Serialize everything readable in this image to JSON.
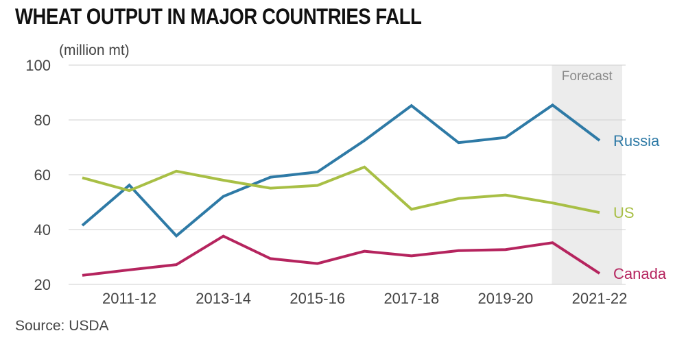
{
  "chart_data": {
    "type": "line",
    "title": "WHEAT OUTPUT IN MAJOR COUNTRIES FALL",
    "ylabel": "(million mt)",
    "ylim": [
      20,
      100
    ],
    "yticks": [
      20,
      40,
      60,
      80,
      100
    ],
    "x": [
      "2010-11",
      "2011-12",
      "2012-13",
      "2013-14",
      "2014-15",
      "2015-16",
      "2016-17",
      "2017-18",
      "2018-19",
      "2019-20",
      "2020-21",
      "2021-22"
    ],
    "xtick_labels": [
      "2011-12",
      "2013-14",
      "2015-16",
      "2017-18",
      "2019-20",
      "2021-22"
    ],
    "grid": true,
    "forecast": {
      "label": "Forecast",
      "from": "2020-21",
      "to": "2021-22"
    },
    "series": [
      {
        "name": "Russia",
        "color": "#2e7aa6",
        "values": [
          41.5,
          56.2,
          37.7,
          52.1,
          59.1,
          61.0,
          72.5,
          85.2,
          71.7,
          73.6,
          85.4,
          72.5
        ]
      },
      {
        "name": "US",
        "color": "#a8bf45",
        "values": [
          58.9,
          54.2,
          61.3,
          58.0,
          55.1,
          56.1,
          62.8,
          47.4,
          51.3,
          52.6,
          49.7,
          46.2
        ]
      },
      {
        "name": "Canada",
        "color": "#b5245e",
        "values": [
          23.3,
          25.3,
          27.2,
          37.6,
          29.4,
          27.6,
          32.1,
          30.4,
          32.3,
          32.7,
          35.2,
          24.0
        ]
      }
    ]
  },
  "source": "Source: USDA"
}
